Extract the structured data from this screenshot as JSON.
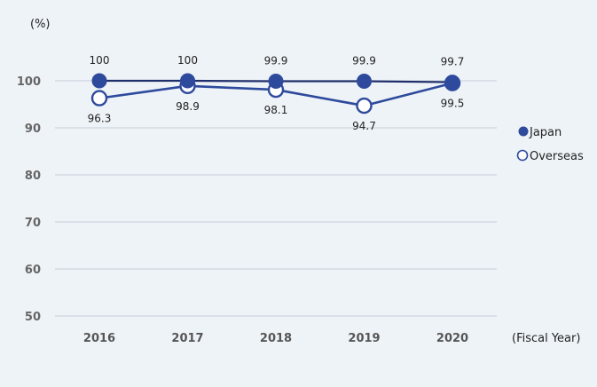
{
  "chart_data": {
    "type": "line",
    "title": "",
    "ylabel": "(%)",
    "xlabel": "(Fiscal Year)",
    "ylim": [
      50,
      100
    ],
    "yticks": [
      50,
      60,
      70,
      80,
      90,
      100
    ],
    "categories": [
      "2016",
      "2017",
      "2018",
      "2019",
      "2020"
    ],
    "grid": true,
    "legend_position": "right",
    "series": [
      {
        "name": "Japan",
        "values": [
          100,
          100,
          99.9,
          99.9,
          99.7
        ],
        "labels": [
          "100",
          "100",
          "99.9",
          "99.9",
          "99.7"
        ],
        "color": "#2e4a9c",
        "marker": "filled-circle",
        "label_position": "above"
      },
      {
        "name": "Overseas",
        "values": [
          96.3,
          98.9,
          98.1,
          94.7,
          99.5
        ],
        "labels": [
          "96.3",
          "98.9",
          "98.1",
          "94.7",
          "99.5"
        ],
        "color": "#2e4a9c",
        "marker": "hollow-circle",
        "label_position": "below"
      }
    ]
  }
}
